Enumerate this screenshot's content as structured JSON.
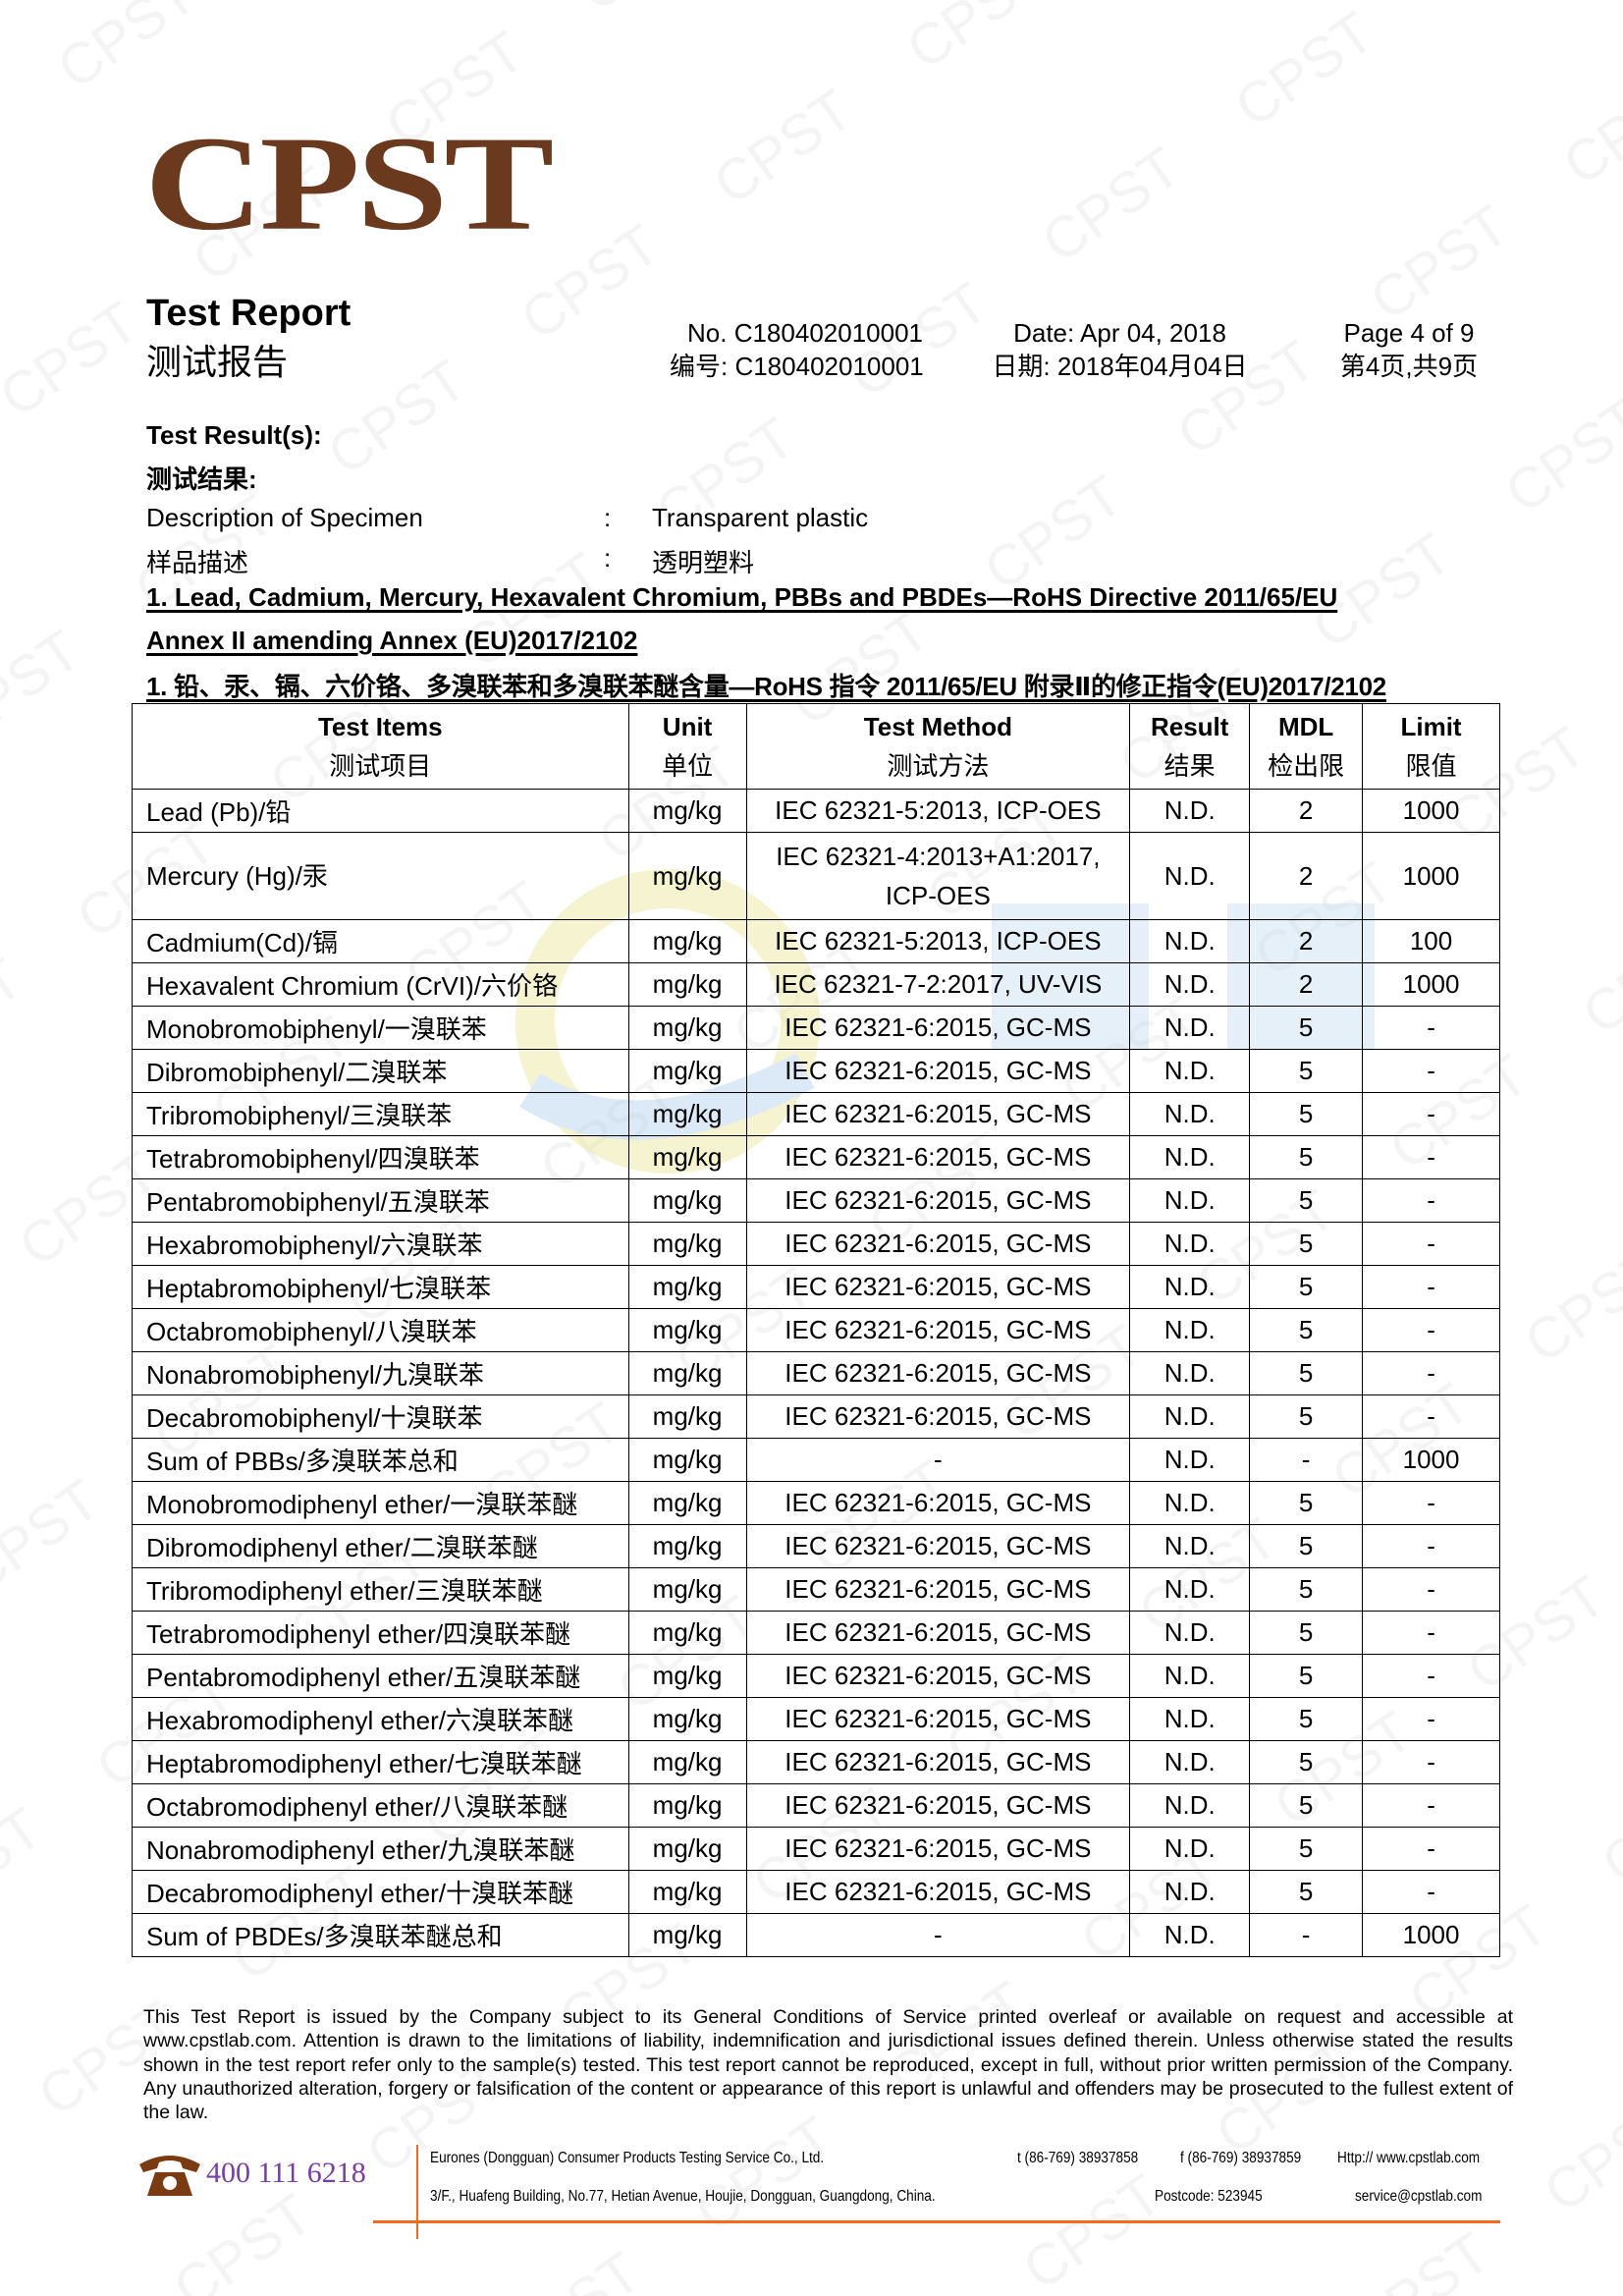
{
  "logo": "CPST",
  "watermark": "CPST",
  "header": {
    "title_en": "Test Report",
    "title_zh": "测试报告",
    "no_en": "No. C180402010001",
    "no_zh": "编号: C180402010001",
    "date_en": "Date: Apr 04, 2018",
    "date_zh": "日期: 2018年04月04日",
    "page_en": "Page 4 of 9",
    "page_zh": "第4页,共9页"
  },
  "results": {
    "label_en": "Test Result(s):",
    "label_zh": "测试结果:",
    "desc_label_en": "Description of Specimen",
    "desc_label_zh": "样品描述",
    "colon": ":",
    "desc_value_en": "Transparent plastic",
    "desc_value_zh": "透明塑料"
  },
  "section": {
    "heading_en_1": "1. Lead, Cadmium, Mercury, Hexavalent Chromium, PBBs and PBDEs—RoHS Directive 2011/65/EU",
    "heading_en_2": "Annex II amending Annex (EU)2017/2102",
    "heading_zh": "1.  铅、汞、镉、六价铬、多溴联苯和多溴联苯醚含量—RoHS 指令 2011/65/EU 附录Ⅱ的修正指令(EU)2017/2102"
  },
  "table": {
    "headers": [
      {
        "en": "Test Items",
        "zh": "测试项目"
      },
      {
        "en": "Unit",
        "zh": "单位"
      },
      {
        "en": "Test Method",
        "zh": "测试方法"
      },
      {
        "en": "Result",
        "zh": "结果"
      },
      {
        "en": "MDL",
        "zh": "检出限"
      },
      {
        "en": "Limit",
        "zh": "限值"
      }
    ],
    "rows": [
      [
        "Lead (Pb)/铅",
        "mg/kg",
        "IEC 62321-5:2013, ICP-OES",
        "N.D.",
        "2",
        "1000"
      ],
      [
        "Mercury (Hg)/汞",
        "mg/kg",
        "IEC 62321-4:2013+A1:2017, ICP-OES",
        "N.D.",
        "2",
        "1000"
      ],
      [
        "Cadmium(Cd)/镉",
        "mg/kg",
        "IEC 62321-5:2013, ICP-OES",
        "N.D.",
        "2",
        "100"
      ],
      [
        "Hexavalent Chromium (CrVI)/六价铬",
        "mg/kg",
        "IEC 62321-7-2:2017, UV-VIS",
        "N.D.",
        "2",
        "1000"
      ],
      [
        "Monobromobiphenyl/一溴联苯",
        "mg/kg",
        "IEC 62321-6:2015, GC-MS",
        "N.D.",
        "5",
        "-"
      ],
      [
        "Dibromobiphenyl/二溴联苯",
        "mg/kg",
        "IEC 62321-6:2015, GC-MS",
        "N.D.",
        "5",
        "-"
      ],
      [
        "Tribromobiphenyl/三溴联苯",
        "mg/kg",
        "IEC 62321-6:2015, GC-MS",
        "N.D.",
        "5",
        "-"
      ],
      [
        "Tetrabromobiphenyl/四溴联苯",
        "mg/kg",
        "IEC 62321-6:2015, GC-MS",
        "N.D.",
        "5",
        "-"
      ],
      [
        "Pentabromobiphenyl/五溴联苯",
        "mg/kg",
        "IEC 62321-6:2015, GC-MS",
        "N.D.",
        "5",
        "-"
      ],
      [
        "Hexabromobiphenyl/六溴联苯",
        "mg/kg",
        "IEC 62321-6:2015, GC-MS",
        "N.D.",
        "5",
        "-"
      ],
      [
        "Heptabromobiphenyl/七溴联苯",
        "mg/kg",
        "IEC 62321-6:2015, GC-MS",
        "N.D.",
        "5",
        "-"
      ],
      [
        "Octabromobiphenyl/八溴联苯",
        "mg/kg",
        "IEC 62321-6:2015, GC-MS",
        "N.D.",
        "5",
        "-"
      ],
      [
        "Nonabromobiphenyl/九溴联苯",
        "mg/kg",
        "IEC 62321-6:2015, GC-MS",
        "N.D.",
        "5",
        "-"
      ],
      [
        "Decabromobiphenyl/十溴联苯",
        "mg/kg",
        "IEC 62321-6:2015, GC-MS",
        "N.D.",
        "5",
        "-"
      ],
      [
        "Sum of PBBs/多溴联苯总和",
        "mg/kg",
        "-",
        "N.D.",
        "-",
        "1000"
      ],
      [
        "Monobromodiphenyl ether/一溴联苯醚",
        "mg/kg",
        "IEC 62321-6:2015, GC-MS",
        "N.D.",
        "5",
        "-"
      ],
      [
        "Dibromodiphenyl ether/二溴联苯醚",
        "mg/kg",
        "IEC 62321-6:2015, GC-MS",
        "N.D.",
        "5",
        "-"
      ],
      [
        "Tribromodiphenyl ether/三溴联苯醚",
        "mg/kg",
        "IEC 62321-6:2015, GC-MS",
        "N.D.",
        "5",
        "-"
      ],
      [
        "Tetrabromodiphenyl ether/四溴联苯醚",
        "mg/kg",
        "IEC 62321-6:2015, GC-MS",
        "N.D.",
        "5",
        "-"
      ],
      [
        "Pentabromodiphenyl ether/五溴联苯醚",
        "mg/kg",
        "IEC 62321-6:2015, GC-MS",
        "N.D.",
        "5",
        "-"
      ],
      [
        "Hexabromodiphenyl ether/六溴联苯醚",
        "mg/kg",
        "IEC 62321-6:2015, GC-MS",
        "N.D.",
        "5",
        "-"
      ],
      [
        "Heptabromodiphenyl ether/七溴联苯醚",
        "mg/kg",
        "IEC 62321-6:2015, GC-MS",
        "N.D.",
        "5",
        "-"
      ],
      [
        "Octabromodiphenyl ether/八溴联苯醚",
        "mg/kg",
        "IEC 62321-6:2015, GC-MS",
        "N.D.",
        "5",
        "-"
      ],
      [
        "Nonabromodiphenyl ether/九溴联苯醚",
        "mg/kg",
        "IEC 62321-6:2015, GC-MS",
        "N.D.",
        "5",
        "-"
      ],
      [
        "Decabromodiphenyl ether/十溴联苯醚",
        "mg/kg",
        "IEC 62321-6:2015, GC-MS",
        "N.D.",
        "5",
        "-"
      ],
      [
        "Sum of PBDEs/多溴联苯醚总和",
        "mg/kg",
        "-",
        "N.D.",
        "-",
        "1000"
      ]
    ]
  },
  "disclaimer": "This Test Report is issued by the Company subject to its General Conditions of Service printed overleaf or available on request and accessible at www.cpstlab.com. Attention is drawn to the limitations of liability, indemnification and jurisdictional issues defined therein. Unless otherwise stated the results shown in the test report refer only to the sample(s) tested. This test report cannot be reproduced, except in full, without prior written permission of the Company. Any unauthorized alteration, forgery or falsification of the content or appearance of this report is unlawful and offenders may be prosecuted to the fullest extent of the law.",
  "footer": {
    "phone_icon": "telephone-icon",
    "hotline": "400 111 6218",
    "company": "Eurones (Dongguan) Consumer Products Testing Service Co., Ltd.",
    "tel": "t (86-769) 38937858",
    "fax": "f (86-769) 38937859",
    "web": "Http:// www.cpstlab.com",
    "address": "3/F., Huafeng Building, No.77, Hetian Avenue, Houjie, Dongguan, Guangdong, China.",
    "postcode": "Postcode: 523945",
    "email": "service@cpstlab.com"
  },
  "colors": {
    "logo": "#6b3a1e",
    "hotline": "#7a3ea0",
    "footer_rule": "#f26a1b"
  }
}
